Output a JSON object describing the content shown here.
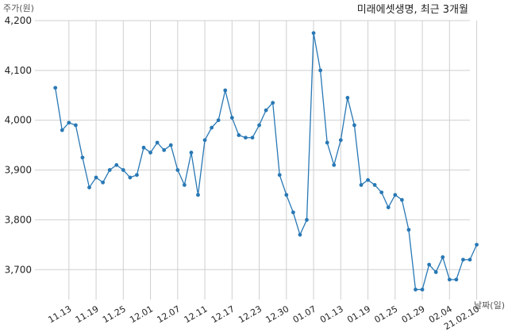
{
  "chart_data": {
    "type": "line",
    "title": "미래에셋생명, 최근 3개월",
    "ylabel": "주가(원)",
    "xlabel": "날짜(일)",
    "ylim": [
      3640,
      4200
    ],
    "yticks": [
      3700,
      3800,
      3900,
      4000,
      4100,
      4200
    ],
    "ytick_labels": [
      "3,700",
      "3,800",
      "3,900",
      "4,000",
      "4,100",
      "4,200"
    ],
    "x_range": [
      -3,
      61
    ],
    "xticks": [
      {
        "x": 2,
        "label": "11.13"
      },
      {
        "x": 6,
        "label": "11.19"
      },
      {
        "x": 10,
        "label": "11.25"
      },
      {
        "x": 14,
        "label": "12.01"
      },
      {
        "x": 18,
        "label": "12.07"
      },
      {
        "x": 22,
        "label": "12.11"
      },
      {
        "x": 26,
        "label": "12.17"
      },
      {
        "x": 30,
        "label": "12.23"
      },
      {
        "x": 34,
        "label": "12.30"
      },
      {
        "x": 38,
        "label": "01.07"
      },
      {
        "x": 42,
        "label": "01.13"
      },
      {
        "x": 46,
        "label": "01.19"
      },
      {
        "x": 50,
        "label": "01.25"
      },
      {
        "x": 54,
        "label": "01.29"
      },
      {
        "x": 58,
        "label": "02.04"
      },
      {
        "x": 62,
        "label": "21.02.10"
      }
    ],
    "grid": true,
    "color": "#2878b5",
    "series": [
      {
        "values": [
          4065,
          3980,
          3995,
          3990,
          3925,
          3865,
          3885,
          3875,
          3900,
          3910,
          3900,
          3885,
          3890,
          3945,
          3935,
          3955,
          3940,
          3950,
          3900,
          3870,
          3935,
          3850,
          3960,
          3985,
          4000,
          4060,
          4005,
          3970,
          3965,
          3965,
          3990,
          4020,
          4035,
          3890,
          3850,
          3815,
          3770,
          3800,
          4175,
          4100,
          3955,
          3910,
          3960,
          4045,
          3990,
          3870,
          3880,
          3870,
          3855,
          3825,
          3850,
          3840,
          3780,
          3660,
          3660,
          3710,
          3695,
          3725,
          3680,
          3680,
          3720,
          3720,
          3750
        ]
      }
    ]
  }
}
